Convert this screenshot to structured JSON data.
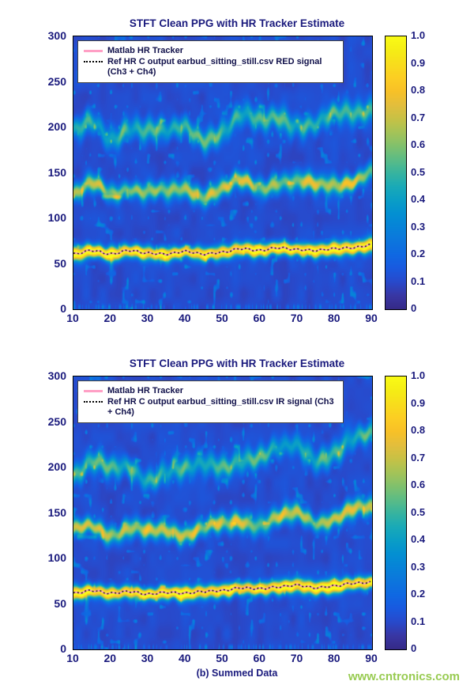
{
  "page": {
    "watermark": "www.cntronics.com"
  },
  "colors": {
    "axis_text": "#1a1a7d",
    "legend_text": "#10104a",
    "matlab_tracker_line": "#ff9fc5",
    "ref_line": "#000000",
    "watermark": "#8dc63f"
  },
  "chart_data": [
    {
      "type": "heatmap",
      "title": "STFT Clean PPG with HR Tracker Estimate",
      "xlim": [
        10,
        90
      ],
      "ylim": [
        0,
        300
      ],
      "x_ticks": [
        10,
        20,
        30,
        40,
        50,
        60,
        70,
        80,
        90
      ],
      "y_ticks": [
        0,
        50,
        100,
        150,
        200,
        250,
        300
      ],
      "colorbar_ticks": [
        "0",
        "0.1",
        "0.2",
        "0.3",
        "0.4",
        "0.5",
        "0.6",
        "0.7",
        "0.8",
        "0.9",
        "1.0"
      ],
      "colormap": "parula",
      "grid": false,
      "legend_position": "top-left",
      "legend": [
        {
          "label": "Matlab HR Tracker",
          "line": "solid",
          "color": "#ff9fc5"
        },
        {
          "label": "Ref HR C output earbud_sitting_still.csv RED signal (Ch3 + Ch4)",
          "line": "dotted",
          "color": "#000000"
        }
      ],
      "hr_track": {
        "x": [
          10,
          15,
          20,
          25,
          30,
          35,
          40,
          45,
          50,
          55,
          60,
          65,
          70,
          75,
          80,
          85,
          90
        ],
        "bpm": [
          60,
          64,
          60,
          64,
          61,
          60,
          63,
          60,
          62,
          66,
          64,
          67,
          65,
          64,
          66,
          67,
          70
        ]
      },
      "harmonic_bands": {
        "multipliers": [
          1,
          2.08,
          3.12
        ],
        "amplitudes": [
          1.0,
          0.6,
          0.42
        ]
      },
      "seed": 7
    },
    {
      "type": "heatmap",
      "title": "STFT Clean PPG with HR Tracker Estimate",
      "caption": "(b) Summed Data",
      "xlim": [
        10,
        90
      ],
      "ylim": [
        0,
        300
      ],
      "x_ticks": [
        10,
        20,
        30,
        40,
        50,
        60,
        70,
        80,
        90
      ],
      "y_ticks": [
        0,
        50,
        100,
        150,
        200,
        250,
        300
      ],
      "colorbar_ticks": [
        "0",
        "0.1",
        "0.2",
        "0.3",
        "0.4",
        "0.5",
        "0.6",
        "0.7",
        "0.8",
        "0.9",
        "1.0"
      ],
      "colormap": "parula",
      "grid": false,
      "legend_position": "top-left",
      "legend": [
        {
          "label": "Matlab HR Tracker",
          "line": "solid",
          "color": "#ff9fc5"
        },
        {
          "label": "Ref HR C output earbud_sitting_still.csv IR signal (Ch3 + Ch4)",
          "line": "dotted",
          "color": "#000000"
        }
      ],
      "hr_track": {
        "x": [
          10,
          15,
          20,
          25,
          30,
          35,
          40,
          45,
          50,
          55,
          60,
          65,
          70,
          75,
          80,
          85,
          90
        ],
        "bpm": [
          61,
          64,
          61,
          63,
          60,
          62,
          61,
          63,
          64,
          67,
          66,
          68,
          70,
          67,
          69,
          72,
          73
        ]
      },
      "harmonic_bands": {
        "multipliers": [
          1,
          2.08,
          3.12
        ],
        "amplitudes": [
          1.0,
          0.6,
          0.42
        ]
      },
      "seed": 13
    }
  ]
}
